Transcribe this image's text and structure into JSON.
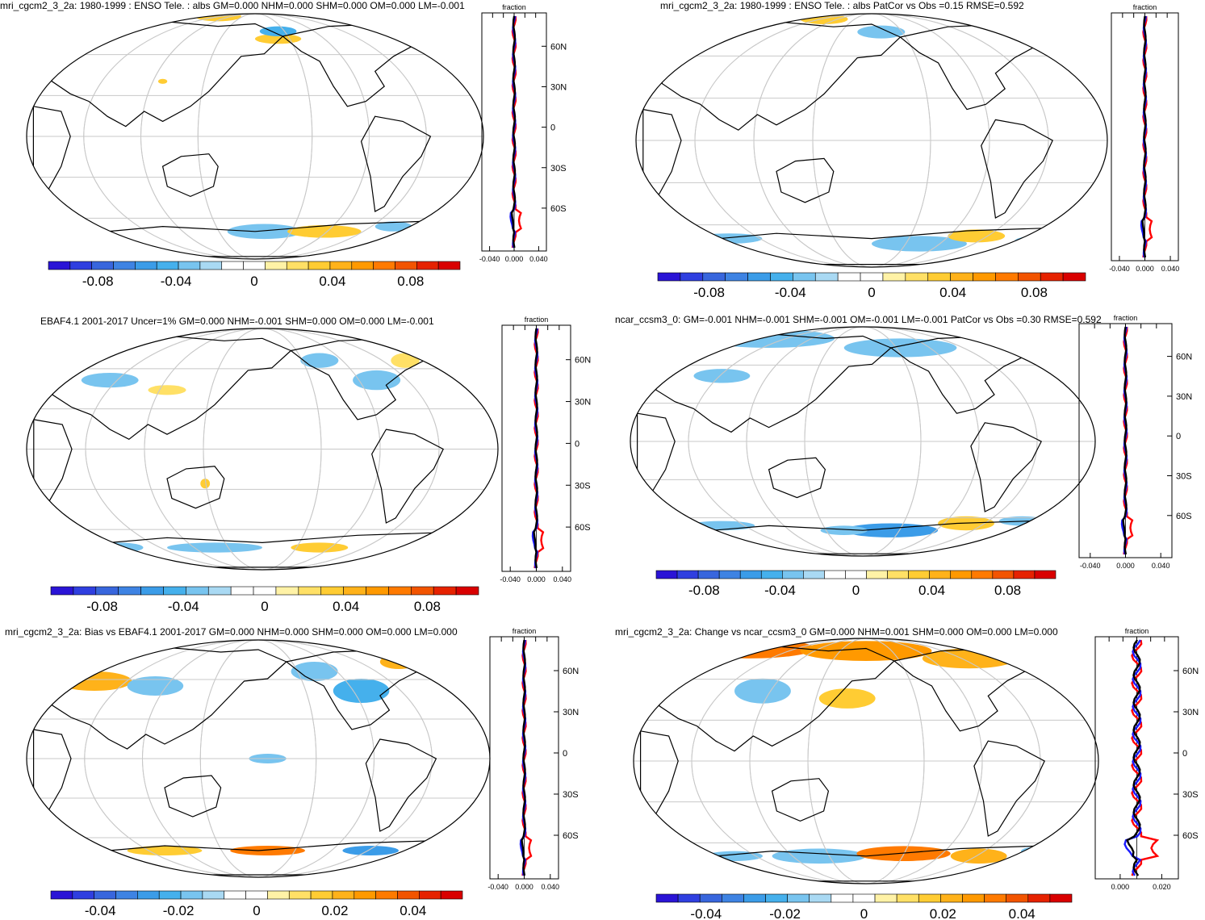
{
  "colors": {
    "scale": [
      "#2a14d6",
      "#2f3fe0",
      "#3866dd",
      "#3e83e3",
      "#3b9ce8",
      "#45b0ec",
      "#78c4ef",
      "#a9d9f3",
      "#ffffff",
      "#ffffff",
      "#fff2a6",
      "#ffe066",
      "#ffcc33",
      "#ffb21a",
      "#ff9900",
      "#ff7a00",
      "#f25400",
      "#e62200",
      "#d90000"
    ],
    "land_outline": "#000000",
    "grid": "#c8c8c8",
    "missing": "#c8c8c8",
    "profile_black": "#000000",
    "profile_red": "#ff0000",
    "profile_blue": "#1a1aff"
  },
  "panels": [
    {
      "title": "mri_cgcm2_3_2a: 1980-1999 : ENSO Tele. : albs GM=0.000 NHM=0.000 SHM=0.000 OM=0.000 LM=-0.001",
      "profile_label": "fraction",
      "lat_labels": [
        "60N",
        "30N",
        "0",
        "30S",
        "60S"
      ],
      "x_ticks": [
        "-0.040",
        "0.000",
        "0.040"
      ],
      "cbar_labels": [
        "-0.08",
        "-0.04",
        "0",
        "0.04",
        "0.08"
      ]
    },
    {
      "title": "mri_cgcm2_3_2a: 1980-1999 : ENSO Tele. : albs PatCor vs Obs =0.15 RMSE=0.592",
      "profile_label": "fraction",
      "lat_labels": [],
      "x_ticks": [
        "-0.040",
        "0.000",
        "0.040"
      ],
      "cbar_labels": [
        "-0.08",
        "-0.04",
        "0",
        "0.04",
        "0.08"
      ]
    },
    {
      "title": "EBAF4.1 2001-2017 Uncer=1% GM=0.000 NHM=-0.001 SHM=0.000 OM=0.000 LM=-0.001",
      "profile_label": "fraction",
      "lat_labels": [
        "60N",
        "30N",
        "0",
        "30S",
        "60S"
      ],
      "x_ticks": [
        "-0.040",
        "0.000",
        "0.040"
      ],
      "cbar_labels": [
        "-0.08",
        "-0.04",
        "0",
        "0.04",
        "0.08"
      ]
    },
    {
      "title": "ncar_ccsm3_0: GM=-0.001 NHM=-0.001 SHM=-0.001 OM=-0.001 LM=-0.001 PatCor vs Obs =0.30 RMSE=0.592",
      "profile_label": "fraction",
      "lat_labels": [
        "60N",
        "30N",
        "0",
        "30S",
        "60S"
      ],
      "x_ticks": [
        "-0.040",
        "0.000",
        "0.040"
      ],
      "cbar_labels": [
        "-0.08",
        "-0.04",
        "0",
        "0.04",
        "0.08"
      ]
    },
    {
      "title": "mri_cgcm2_3_2a: Bias vs EBAF4.1 2001-2017 GM=0.000 NHM=0.000 SHM=0.000 OM=0.000 LM=0.000",
      "profile_label": "fraction",
      "lat_labels": [
        "60N",
        "30N",
        "0",
        "30S",
        "60S"
      ],
      "x_ticks": [
        "-0.040",
        "0.000",
        "0.040"
      ],
      "cbar_labels": [
        "-0.04",
        "-0.02",
        "0",
        "0.02",
        "0.04"
      ]
    },
    {
      "title": "mri_cgcm2_3_2a: Change vs ncar_ccsm3_0 GM=0.000 NHM=0.001 SHM=0.000 OM=0.000 LM=0.000",
      "profile_label": "fraction",
      "lat_labels": [
        "60N",
        "30N",
        "0",
        "30S",
        "60S"
      ],
      "x_ticks": [
        "0.000",
        "0.020"
      ],
      "cbar_labels": [
        "-0.04",
        "-0.02",
        "0",
        "0.02",
        "0.04"
      ]
    }
  ]
}
